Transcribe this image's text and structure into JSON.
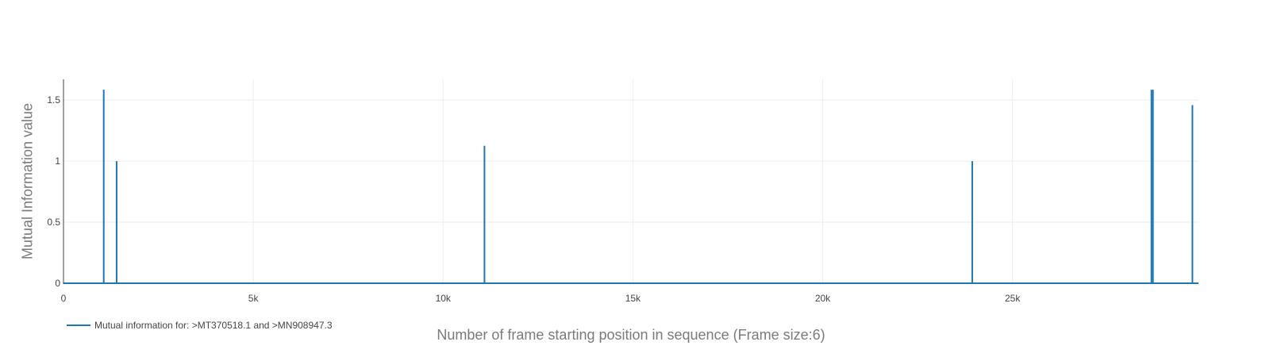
{
  "chart_data": {
    "type": "line",
    "xlabel": "Number of frame starting position in sequence (Frame size:6)",
    "ylabel": "Mutual Information value",
    "xlim": [
      0,
      29900
    ],
    "ylim": [
      0,
      1.67
    ],
    "x_ticks": [
      0,
      5000,
      10000,
      15000,
      20000,
      25000
    ],
    "x_tick_labels": [
      "0",
      "5k",
      "10k",
      "15k",
      "20k",
      "25k"
    ],
    "y_ticks": [
      0,
      0.5,
      1,
      1.5
    ],
    "y_tick_labels": [
      "0",
      "0.5",
      "1",
      "1.5"
    ],
    "grid": true,
    "legend_position": "bottom-left",
    "series": [
      {
        "name": "Mutual information for: >MT370518.1 and >MN908947.3",
        "color": "#1f77b4",
        "points": [
          {
            "x": 1060,
            "y": 1.585
          },
          {
            "x": 1400,
            "y": 1.0
          },
          {
            "x": 11090,
            "y": 1.126
          },
          {
            "x": 23940,
            "y": 1.0
          },
          {
            "x": 28660,
            "y": 1.585
          },
          {
            "x": 28700,
            "y": 1.585
          },
          {
            "x": 29740,
            "y": 1.459
          }
        ],
        "baseline": 0
      }
    ]
  }
}
